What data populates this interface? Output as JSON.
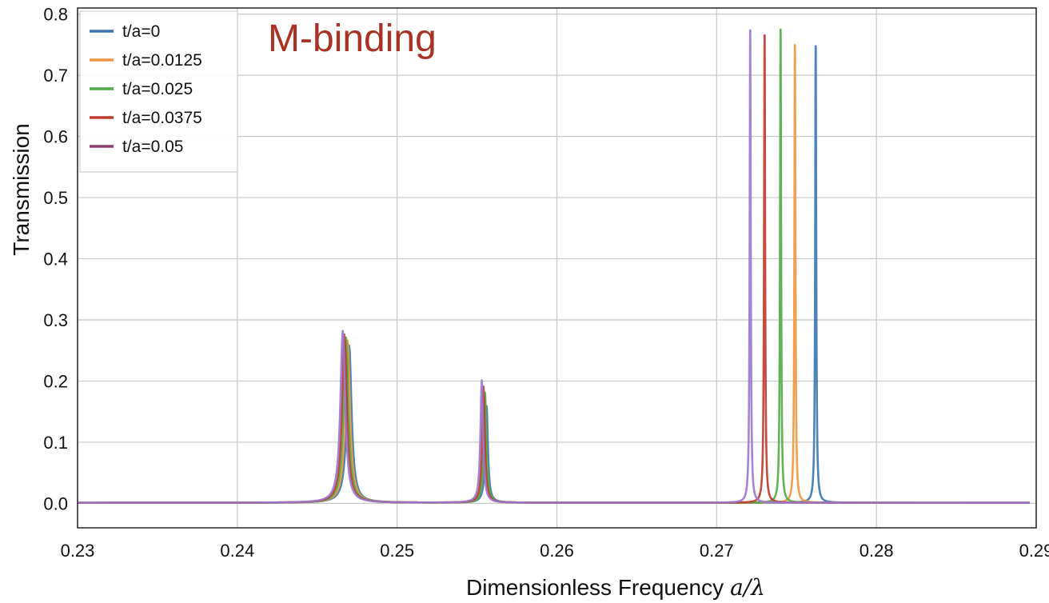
{
  "chart_data": {
    "type": "line",
    "title": "",
    "annotation": "M-binding",
    "xlabel": "Dimensionless Frequency",
    "xlabel_math": "a/λ",
    "ylabel": "Transmission",
    "xlim": [
      0.23,
      0.29
    ],
    "ylim": [
      -0.04,
      0.81
    ],
    "xticks": [
      0.23,
      0.24,
      0.25,
      0.26,
      0.27,
      0.28,
      0.29
    ],
    "xtick_labels": [
      "0.23",
      "0.24",
      "0.25",
      "0.26",
      "0.27",
      "0.28",
      "0.29"
    ],
    "yticks": [
      0.0,
      0.1,
      0.2,
      0.3,
      0.4,
      0.5,
      0.6,
      0.7,
      0.8
    ],
    "ytick_labels": [
      "0.0",
      "0.1",
      "0.2",
      "0.3",
      "0.4",
      "0.5",
      "0.6",
      "0.7",
      "0.8"
    ],
    "grid": true,
    "legend_position": "top-left",
    "series": [
      {
        "name": "t/a=0",
        "color": "#3a75b0",
        "peaks": [
          {
            "x": 0.247,
            "y": 0.257,
            "w": 0.00018
          },
          {
            "x": 0.2556,
            "y": 0.158,
            "w": 0.0001
          },
          {
            "x": 0.2762,
            "y": 0.754,
            "w": 4e-05
          }
        ]
      },
      {
        "name": "t/a=0.0125",
        "color": "#f0963c",
        "peaks": [
          {
            "x": 0.2469,
            "y": 0.265,
            "w": 0.00018
          },
          {
            "x": 0.2555,
            "y": 0.17,
            "w": 0.0001
          },
          {
            "x": 0.2749,
            "y": 0.756,
            "w": 4e-05
          }
        ]
      },
      {
        "name": "t/a=0.025",
        "color": "#4fab45",
        "peaks": [
          {
            "x": 0.2468,
            "y": 0.27,
            "w": 0.00018
          },
          {
            "x": 0.2555,
            "y": 0.18,
            "w": 0.0001
          },
          {
            "x": 0.274,
            "y": 0.774,
            "w": 4e-05
          }
        ]
      },
      {
        "name": "t/a=0.0375",
        "color": "#c0392b",
        "peaks": [
          {
            "x": 0.2467,
            "y": 0.275,
            "w": 0.00018
          },
          {
            "x": 0.2554,
            "y": 0.19,
            "w": 0.0001
          },
          {
            "x": 0.273,
            "y": 0.772,
            "w": 4e-05
          }
        ]
      },
      {
        "name": "t/a=0.05",
        "color": "#8e3b6b",
        "line_color": "#9b77d0",
        "peaks": [
          {
            "x": 0.2466,
            "y": 0.281,
            "w": 0.00018
          },
          {
            "x": 0.2553,
            "y": 0.2,
            "w": 0.0001
          },
          {
            "x": 0.2721,
            "y": 0.78,
            "w": 4e-05
          }
        ]
      }
    ]
  },
  "colors": {
    "annotation": "#a83224",
    "grid": "#c8c8c8"
  }
}
